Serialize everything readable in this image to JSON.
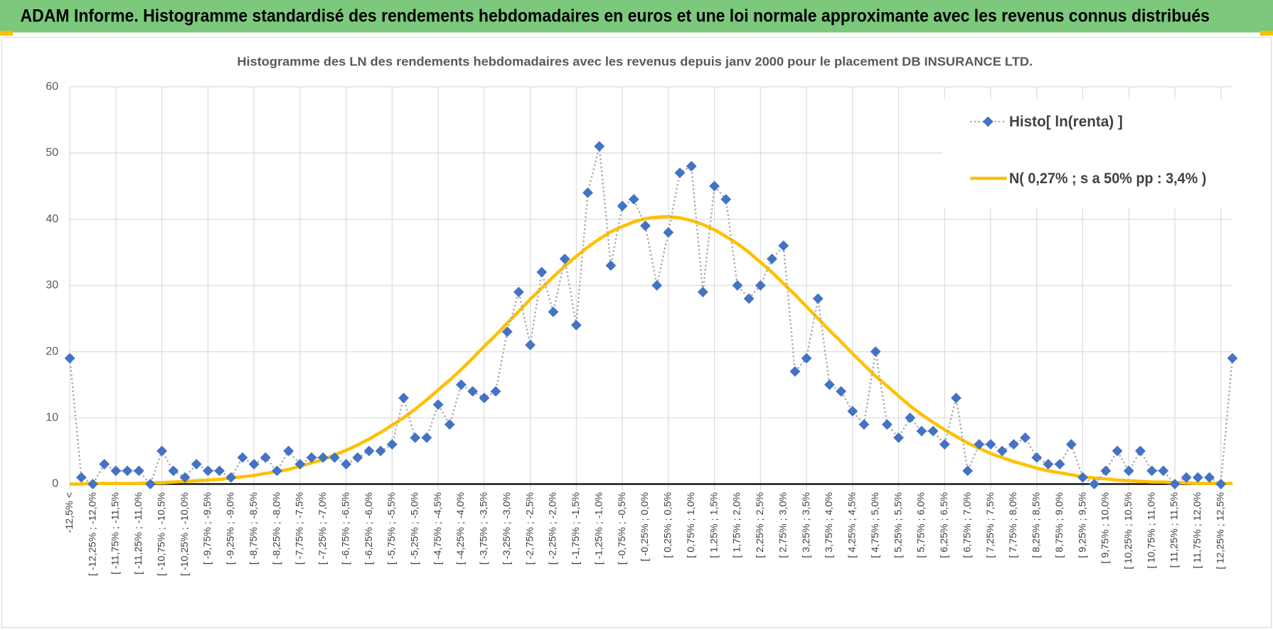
{
  "header": {
    "title": "ADAM Informe. Histogramme standardisé des rendements hebdomadaires en euros et une loi normale approximante avec les revenus connus distribués"
  },
  "chart_data": {
    "type": "line",
    "title": "Histogramme des LN des rendements hebdomadaires avec les revenus depuis janv 2000 pour le placement DB INSURANCE LTD.",
    "categories": [
      "-12,5% <",
      null,
      "[ -12,25% ; -12,0%",
      null,
      "[ -11,75% ; -11,5%",
      null,
      "[ -11,25% ; -11,0%",
      null,
      "[ -10,75% ; -10,5%",
      null,
      "[ -10,25% ; -10,0%",
      null,
      "[ -9,75% ; -9,5%",
      null,
      "[ -9,25% ; -9,0%",
      null,
      "[ -8,75% ; -8,5%",
      null,
      "[ -8,25% ; -8,0%",
      null,
      "[ -7,75% ; -7,5%",
      null,
      "[ -7,25% ; -7,0%",
      null,
      "[ -6,75% ; -6,5%",
      null,
      "[ -6,25% ; -6,0%",
      null,
      "[ -5,75% ; -5,5%",
      null,
      "[ -5,25% ; -5,0%",
      null,
      "[ -4,75% ; -4,5%",
      null,
      "[ -4,25% ; -4,0%",
      null,
      "[ -3,75% ; -3,5%",
      null,
      "[ -3,25% ; -3,0%",
      null,
      "[ -2,75% ; -2,5%",
      null,
      "[ -2,25% ; -2,0%",
      null,
      "[ -1,75% ; -1,5%",
      null,
      "[ -1,25% ; -1,0%",
      null,
      "[ -0,75% ; -0,5%",
      null,
      "[ -0,25% ; 0,0%",
      null,
      "[ 0,25% ; 0,5%",
      null,
      "[ 0,75% ; 1,0%",
      null,
      "[ 1,25% ; 1,5%",
      null,
      "[ 1,75% ; 2,0%",
      null,
      "[ 2,25% ; 2,5%",
      null,
      "[ 2,75% ; 3,0%",
      null,
      "[ 3,25% ; 3,5%",
      null,
      "[ 3,75% ; 4,0%",
      null,
      "[ 4,25% ; 4,5%",
      null,
      "[ 4,75% ; 5,0%",
      null,
      "[ 5,25% ; 5,5%",
      null,
      "[ 5,75% ; 6,0%",
      null,
      "[ 6,25% ; 6,5%",
      null,
      "[ 6,75% ; 7,0%",
      null,
      "[ 7,25% ; 7,5%",
      null,
      "[ 7,75% ; 8,0%",
      null,
      "[ 8,25% ; 8,5%",
      null,
      "[ 8,75% ; 9,0%",
      null,
      "[ 9,25% ; 9,5%",
      null,
      "[ 9,75% ; 10,0%",
      null,
      "[ 10,25% ; 10,5%",
      null,
      "[ 10,75% ; 11,0%",
      null,
      "[ 11,25% ; 11,5%",
      null,
      "[ 11,75% ; 12,0%",
      null,
      "[ 12,25% ; 12,5%",
      null
    ],
    "series": [
      {
        "name": "Histo[ ln(renta) ]",
        "color": "#4472c4",
        "line_color": "#a6a6a6",
        "marker": "diamond",
        "dash": "dotted",
        "values": [
          19,
          1,
          0,
          3,
          2,
          2,
          2,
          0,
          5,
          2,
          1,
          3,
          2,
          2,
          1,
          4,
          3,
          4,
          2,
          5,
          3,
          4,
          4,
          4,
          3,
          4,
          5,
          5,
          6,
          13,
          7,
          7,
          12,
          9,
          15,
          14,
          13,
          14,
          23,
          29,
          21,
          32,
          26,
          34,
          24,
          44,
          51,
          33,
          42,
          43,
          39,
          30,
          38,
          47,
          48,
          29,
          45,
          43,
          30,
          28,
          30,
          34,
          36,
          17,
          19,
          28,
          15,
          14,
          11,
          9,
          20,
          9,
          7,
          10,
          8,
          8,
          6,
          13,
          2,
          6,
          6,
          5,
          6,
          7,
          4,
          3,
          3,
          6,
          1,
          0,
          2,
          5,
          2,
          5,
          2,
          2,
          0,
          1,
          1,
          1,
          0,
          19
        ]
      },
      {
        "name": "N( 0,27% ; s a 50% pp : 3,4% )",
        "color": "#ffc000",
        "marker": "none",
        "dash": "solid",
        "values": [
          0.0,
          0.0,
          0.1,
          0.1,
          0.1,
          0.1,
          0.1,
          0.2,
          0.2,
          0.3,
          0.4,
          0.5,
          0.6,
          0.7,
          0.9,
          1.1,
          1.3,
          1.6,
          1.9,
          2.2,
          2.7,
          3.2,
          3.7,
          4.4,
          5.1,
          5.9,
          6.8,
          7.8,
          8.9,
          10.0,
          11.3,
          12.7,
          14.2,
          15.7,
          17.3,
          19.0,
          20.8,
          22.5,
          24.3,
          26.1,
          27.9,
          29.6,
          31.3,
          32.9,
          34.4,
          35.8,
          37.0,
          38.1,
          38.9,
          39.6,
          40.1,
          40.3,
          40.4,
          40.2,
          39.8,
          39.2,
          38.4,
          37.4,
          36.3,
          35.0,
          33.5,
          32.0,
          30.3,
          28.6,
          26.8,
          25.0,
          23.2,
          21.5,
          19.7,
          18.0,
          16.3,
          14.8,
          13.3,
          11.8,
          10.5,
          9.3,
          8.2,
          7.2,
          6.2,
          5.4,
          4.6,
          4.0,
          3.4,
          2.9,
          2.4,
          2.0,
          1.7,
          1.4,
          1.1,
          0.9,
          0.8,
          0.6,
          0.5,
          0.4,
          0.3,
          0.3,
          0.2,
          0.2,
          0.1,
          0.1,
          0.1,
          0.1
        ]
      }
    ],
    "ylim": [
      0,
      60
    ],
    "yticks": [
      0,
      10,
      20,
      30,
      40,
      50,
      60
    ],
    "grid": true,
    "legend": "top-right"
  }
}
